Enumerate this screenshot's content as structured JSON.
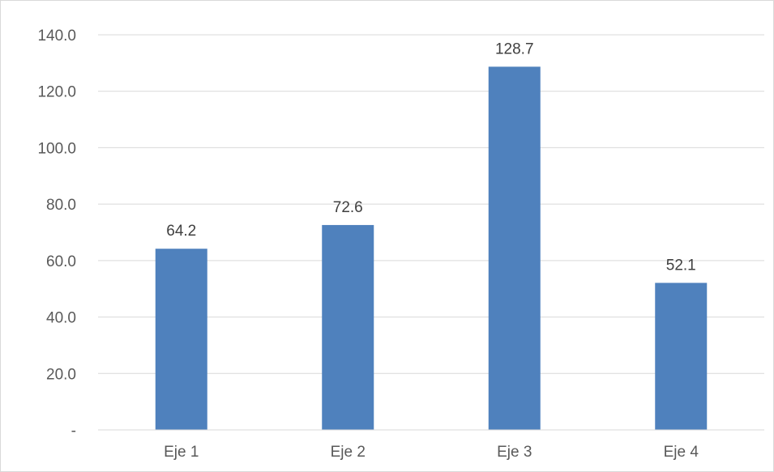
{
  "chart_data": {
    "type": "bar",
    "categories": [
      "Eje 1",
      "Eje 2",
      "Eje 3",
      "Eje 4"
    ],
    "values": [
      64.2,
      72.6,
      128.7,
      52.1
    ],
    "data_labels": [
      "64.2",
      "72.6",
      "128.7",
      "52.1"
    ],
    "ylim": [
      0,
      140
    ],
    "y_ticks": [
      0,
      20,
      40,
      60,
      80,
      100,
      120,
      140
    ],
    "y_tick_labels": [
      "-",
      "20.0",
      "40.0",
      "60.0",
      "80.0",
      "100.0",
      "120.0",
      "140.0"
    ],
    "grid": true,
    "legend": "none",
    "bar_color": "#4f81bd",
    "grid_color": "#d9d9d9",
    "title": "",
    "xlabel": "",
    "ylabel": ""
  }
}
